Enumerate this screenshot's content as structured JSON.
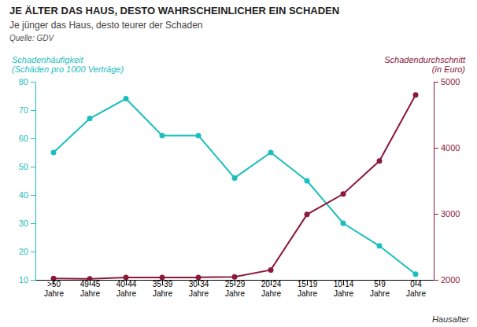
{
  "chart_data": {
    "type": "line",
    "title": "JE ÄLTER DAS HAUS, DESTO WAHRSCHEINLICHER EIN SCHADEN",
    "subtitle": "Je jünger das Haus, desto teurer der Schaden",
    "annotations": [
      "Quelle: GDV"
    ],
    "xlabel": "Hausalter",
    "ylabel": "Schadenhäufigkeit\n(Schäden pro 1000 Verträge)",
    "y2label": "Schadendurchschnitt\n(in Euro)",
    "categories": [
      ">50\nJahre",
      "49-45\nJahre",
      "40-44\nJahre",
      "35-39\nJahre",
      "30-34\nJahre",
      "25-29\nJahre",
      "20-24\nJahre",
      "15-19\nJahre",
      "10-14\nJahre",
      "5-9\nJahre",
      "0-4\nJahre"
    ],
    "series": [
      {
        "color": "#1BBEBE",
        "marker": "circle",
        "line_style": "solid",
        "values": [
          55,
          67,
          74,
          61,
          61,
          46,
          55,
          45,
          30,
          22,
          12
        ]
      },
      {
        "color": "#8B1A3A",
        "marker": "circle",
        "line_style": "solid",
        "axis": "y2",
        "values": [
          2020,
          2016,
          2037,
          2036,
          2037,
          2044,
          2150,
          2990,
          3300,
          3800,
          4800
        ]
      }
    ],
    "ylim": [
      10,
      80
    ],
    "yticks": [
      10,
      20,
      30,
      40,
      50,
      60,
      70,
      80
    ],
    "y2lim": [
      2000,
      5000
    ],
    "y2ticks": [
      2000,
      3000,
      4000,
      5000
    ],
    "grid": false
  }
}
